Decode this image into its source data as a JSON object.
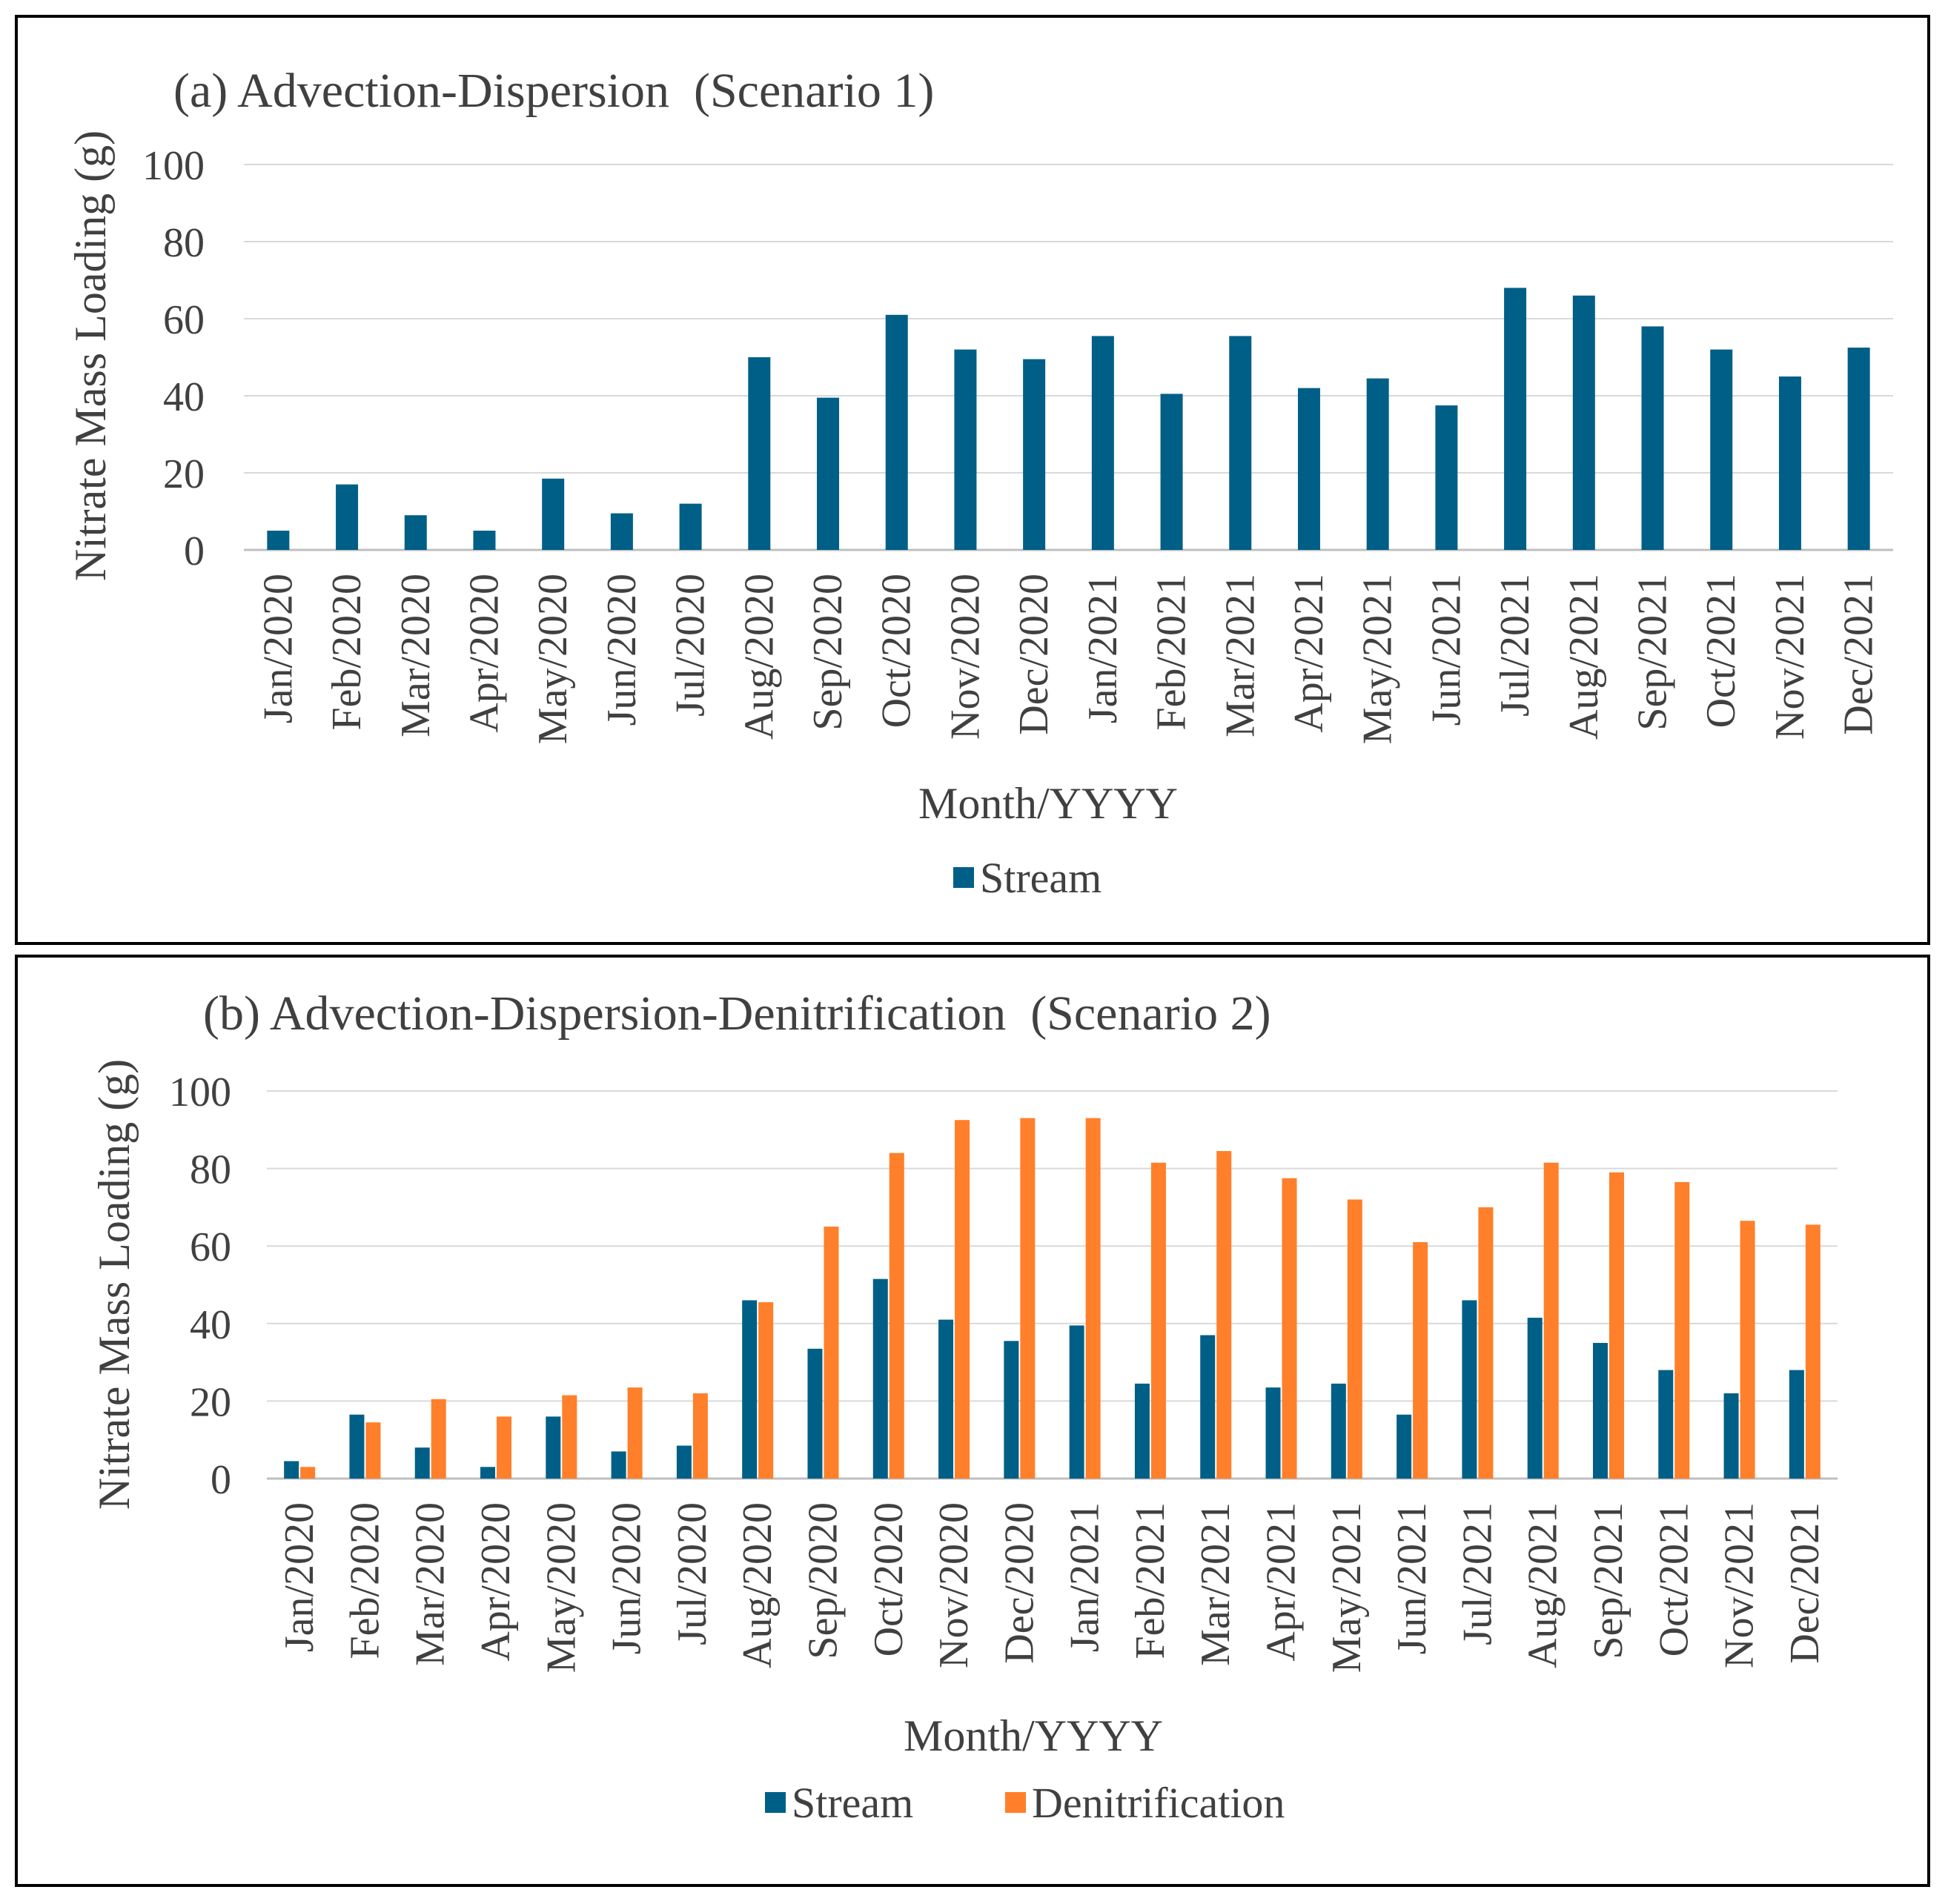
{
  "colors": {
    "stream": "#005f87",
    "denitrification": "#ff7f2a",
    "grid": "#d9d9d9",
    "text": "#404040"
  },
  "chart_data": [
    {
      "type": "bar",
      "title": "(a) Advection-Dispersion  (Scenario 1)",
      "xlabel": "Month/YYYY",
      "ylabel": "Nitrate Mass Loading (g)",
      "ylim": [
        0,
        100
      ],
      "yticks": [
        "0",
        "20",
        "40",
        "60",
        "80",
        "100"
      ],
      "grid": true,
      "legend": "bottom-center",
      "categories": [
        "Jan/2020",
        "Feb/2020",
        "Mar/2020",
        "Apr/2020",
        "May/2020",
        "Jun/2020",
        "Jul/2020",
        "Aug/2020",
        "Sep/2020",
        "Oct/2020",
        "Nov/2020",
        "Dec/2020",
        "Jan/2021",
        "Feb/2021",
        "Mar/2021",
        "Apr/2021",
        "May/2021",
        "Jun/2021",
        "Jul/2021",
        "Aug/2021",
        "Sep/2021",
        "Oct/2021",
        "Nov/2021",
        "Dec/2021"
      ],
      "series": [
        {
          "name": "Stream",
          "color": "#005f87",
          "values": [
            5,
            17,
            9,
            5,
            18.5,
            9.5,
            12,
            50,
            39.5,
            61,
            52,
            49.5,
            55.5,
            40.5,
            55.5,
            42,
            44.5,
            37.5,
            68,
            66,
            58,
            52,
            45,
            52.5
          ]
        }
      ]
    },
    {
      "type": "bar",
      "title": "(b) Advection-Dispersion-Denitrification  (Scenario 2)",
      "xlabel": "Month/YYYY",
      "ylabel": "Nitrate Mass Loading (g)",
      "ylim": [
        0,
        100
      ],
      "yticks": [
        "0",
        "20",
        "40",
        "60",
        "80",
        "100"
      ],
      "grid": true,
      "legend": "bottom-center",
      "categories": [
        "Jan/2020",
        "Feb/2020",
        "Mar/2020",
        "Apr/2020",
        "May/2020",
        "Jun/2020",
        "Jul/2020",
        "Aug/2020",
        "Sep/2020",
        "Oct/2020",
        "Nov/2020",
        "Dec/2020",
        "Jan/2021",
        "Feb/2021",
        "Mar/2021",
        "Apr/2021",
        "May/2021",
        "Jun/2021",
        "Jul/2021",
        "Aug/2021",
        "Sep/2021",
        "Oct/2021",
        "Nov/2021",
        "Dec/2021"
      ],
      "series": [
        {
          "name": "Stream",
          "color": "#005f87",
          "values": [
            4.5,
            16.5,
            8,
            3,
            16,
            7,
            8.5,
            46,
            33.5,
            51.5,
            41,
            35.5,
            39.5,
            24.5,
            37,
            23.5,
            24.5,
            16.5,
            46,
            41.5,
            35,
            28,
            22,
            28
          ]
        },
        {
          "name": "Denitrification",
          "color": "#ff7f2a",
          "values": [
            3,
            14.5,
            20.5,
            16,
            21.5,
            23.5,
            22,
            45.5,
            65,
            84,
            92.5,
            93,
            93,
            81.5,
            84.5,
            77.5,
            72,
            61,
            70,
            81.5,
            79,
            76.5,
            66.5,
            65.5
          ]
        }
      ]
    }
  ]
}
